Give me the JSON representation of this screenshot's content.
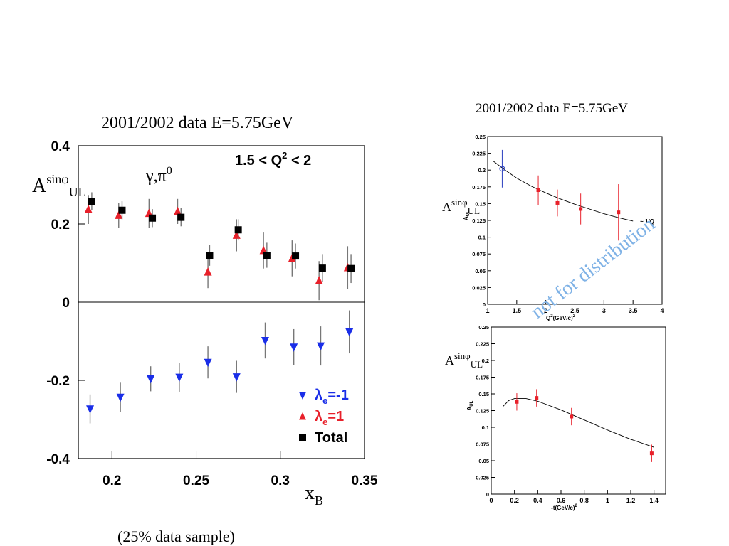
{
  "left_chart_title": "2001/2002  data E=5.75GeV",
  "right_chart_title": "2001/2002  data E=5.75GeV",
  "footnote": "(25% data sample)",
  "watermark": "not for distribution",
  "colors": {
    "red": "#e8202a",
    "blue": "#1a2ee8",
    "black": "#000000",
    "open_blue": "#2a3fbf",
    "watermark": "#7fb2e6"
  },
  "chart_data": [
    {
      "type": "scatter",
      "title": "2001/2002  data E=5.75GeV",
      "xlabel": "x",
      "xlabel_sub": "B",
      "ylabel": "A",
      "ylabel_sup": "sinφ",
      "ylabel_sub": "UL",
      "annotation_process": "γ,π",
      "annotation_process_sup": "0",
      "annotation_range": "1.5 < Q",
      "annotation_range_sup": "2",
      "annotation_range_end": " < 2",
      "xlim": [
        0.18,
        0.35
      ],
      "ylim": [
        -0.4,
        0.4
      ],
      "xticks": [
        0.2,
        0.25,
        0.3,
        0.35
      ],
      "xtick_labels": [
        "0.2",
        "0.25",
        "0.3",
        "0.35"
      ],
      "yticks": [
        -0.4,
        -0.2,
        0,
        0.2,
        0.4
      ],
      "ytick_labels": [
        "-0.4",
        "-0.2",
        "0",
        "0.2",
        "0.4"
      ],
      "legend_position": "bottom-right",
      "series": [
        {
          "name": "λe=-1",
          "legend_main": "λ",
          "legend_sub": "e",
          "legend_rest": "=-1",
          "marker": "triangle-down",
          "color": "#1a2ee8",
          "points": [
            {
              "x": 0.187,
              "y": -0.273,
              "err": 0.037
            },
            {
              "x": 0.205,
              "y": -0.243,
              "err": 0.037
            },
            {
              "x": 0.223,
              "y": -0.196,
              "err": 0.032
            },
            {
              "x": 0.24,
              "y": -0.192,
              "err": 0.037
            },
            {
              "x": 0.257,
              "y": -0.154,
              "err": 0.041
            },
            {
              "x": 0.274,
              "y": -0.191,
              "err": 0.041
            },
            {
              "x": 0.291,
              "y": -0.098,
              "err": 0.046
            },
            {
              "x": 0.308,
              "y": -0.115,
              "err": 0.046
            },
            {
              "x": 0.324,
              "y": -0.112,
              "err": 0.05
            },
            {
              "x": 0.341,
              "y": -0.076,
              "err": 0.055
            }
          ]
        },
        {
          "name": "λe=1",
          "legend_main": "λ",
          "legend_sub": "e",
          "legend_rest": "=1",
          "marker": "triangle-up",
          "color": "#e8202a",
          "points": [
            {
              "x": 0.186,
              "y": 0.237,
              "err": 0.037
            },
            {
              "x": 0.204,
              "y": 0.222,
              "err": 0.032
            },
            {
              "x": 0.222,
              "y": 0.227,
              "err": 0.037
            },
            {
              "x": 0.239,
              "y": 0.232,
              "err": 0.032
            },
            {
              "x": 0.257,
              "y": 0.077,
              "err": 0.041
            },
            {
              "x": 0.274,
              "y": 0.171,
              "err": 0.041
            },
            {
              "x": 0.29,
              "y": 0.132,
              "err": 0.046
            },
            {
              "x": 0.307,
              "y": 0.112,
              "err": 0.046
            },
            {
              "x": 0.323,
              "y": 0.055,
              "err": 0.05
            },
            {
              "x": 0.34,
              "y": 0.088,
              "err": 0.055
            }
          ]
        },
        {
          "name": "Total",
          "legend_main": "Total",
          "legend_sub": "",
          "legend_rest": "",
          "marker": "square",
          "color": "#000000",
          "points": [
            {
              "x": 0.188,
              "y": 0.258,
              "err": 0.023
            },
            {
              "x": 0.206,
              "y": 0.235,
              "err": 0.023
            },
            {
              "x": 0.224,
              "y": 0.215,
              "err": 0.023
            },
            {
              "x": 0.241,
              "y": 0.217,
              "err": 0.023
            },
            {
              "x": 0.258,
              "y": 0.12,
              "err": 0.027
            },
            {
              "x": 0.275,
              "y": 0.185,
              "err": 0.027
            },
            {
              "x": 0.292,
              "y": 0.12,
              "err": 0.032
            },
            {
              "x": 0.309,
              "y": 0.118,
              "err": 0.032
            },
            {
              "x": 0.325,
              "y": 0.087,
              "err": 0.036
            },
            {
              "x": 0.342,
              "y": 0.086,
              "err": 0.037
            }
          ]
        }
      ]
    },
    {
      "type": "scatter",
      "title": "2001/2002  data E=5.75GeV",
      "xlabel": "Q",
      "xlabel_sup": "2",
      "xlabel_rest": "(GeV/c)",
      "xlabel_sup2": "2",
      "ylabel": "A",
      "ylabel_sup": "sinφ",
      "ylabel_sub": "UL",
      "yaxis_small_label": "A_UL",
      "xlim": [
        1,
        4
      ],
      "ylim": [
        0,
        0.25
      ],
      "xticks": [
        1,
        1.5,
        2,
        2.5,
        3,
        3.5,
        4
      ],
      "xtick_labels": [
        "1",
        "1.5",
        "2",
        "2.5",
        "3",
        "3.5",
        "4"
      ],
      "yticks": [
        0,
        0.025,
        0.05,
        0.075,
        0.1,
        0.125,
        0.15,
        0.175,
        0.2,
        0.225,
        0.25
      ],
      "ytick_labels": [
        "0",
        "0.025",
        "0.05",
        "0.075",
        "0.1",
        "0.125",
        "0.15",
        "0.175",
        "0.2",
        "0.225",
        "0.25"
      ],
      "curve_label": "~ 1/Q",
      "curve": [
        [
          1.1,
          0.213
        ],
        [
          1.3,
          0.2
        ],
        [
          1.5,
          0.188
        ],
        [
          1.75,
          0.176
        ],
        [
          2.0,
          0.166
        ],
        [
          2.25,
          0.157
        ],
        [
          2.5,
          0.149
        ],
        [
          2.75,
          0.142
        ],
        [
          3.0,
          0.135
        ],
        [
          3.25,
          0.129
        ],
        [
          3.5,
          0.124
        ]
      ],
      "series": [
        {
          "name": "open",
          "marker": "open-circle",
          "color": "#2a3fbf",
          "points": [
            {
              "x": 1.25,
              "y": 0.202,
              "err": 0.028
            }
          ]
        },
        {
          "name": "data",
          "marker": "square",
          "color": "#e8202a",
          "points": [
            {
              "x": 1.87,
              "y": 0.17,
              "err": 0.022
            },
            {
              "x": 2.2,
              "y": 0.151,
              "err": 0.02
            },
            {
              "x": 2.6,
              "y": 0.142,
              "err": 0.023
            },
            {
              "x": 3.25,
              "y": 0.137,
              "err": 0.042
            }
          ]
        }
      ]
    },
    {
      "type": "scatter",
      "xlabel": "-t(GeV/c)",
      "xlabel_sup": "2",
      "ylabel": "A",
      "ylabel_sup": "sinφ",
      "ylabel_sub": "UL",
      "yaxis_small_label": "A_UL",
      "xlim": [
        0,
        1.5
      ],
      "ylim": [
        0,
        0.25
      ],
      "xticks": [
        0,
        0.2,
        0.4,
        0.6,
        0.8,
        1,
        1.2,
        1.4
      ],
      "xtick_labels": [
        "0",
        "0.2",
        "0.4",
        "0.6",
        "0.8",
        "1",
        "1.2",
        "1.4"
      ],
      "yticks": [
        0,
        0.025,
        0.05,
        0.075,
        0.1,
        0.125,
        0.15,
        0.175,
        0.2,
        0.225,
        0.25
      ],
      "ytick_labels": [
        "0",
        "0.025",
        "0.05",
        "0.075",
        "0.1",
        "0.125",
        "0.15",
        "0.175",
        "0.2",
        "0.225",
        "0.25"
      ],
      "curve": [
        [
          0.1,
          0.131
        ],
        [
          0.15,
          0.14
        ],
        [
          0.2,
          0.143
        ],
        [
          0.3,
          0.143
        ],
        [
          0.4,
          0.139
        ],
        [
          0.6,
          0.126
        ],
        [
          0.8,
          0.111
        ],
        [
          1.0,
          0.096
        ],
        [
          1.2,
          0.082
        ],
        [
          1.4,
          0.07
        ]
      ],
      "series": [
        {
          "name": "data",
          "marker": "square",
          "color": "#e8202a",
          "points": [
            {
              "x": 0.22,
              "y": 0.138,
              "err": 0.013
            },
            {
              "x": 0.39,
              "y": 0.144,
              "err": 0.013
            },
            {
              "x": 0.69,
              "y": 0.116,
              "err": 0.013
            },
            {
              "x": 1.38,
              "y": 0.061,
              "err": 0.013
            }
          ]
        }
      ]
    }
  ]
}
